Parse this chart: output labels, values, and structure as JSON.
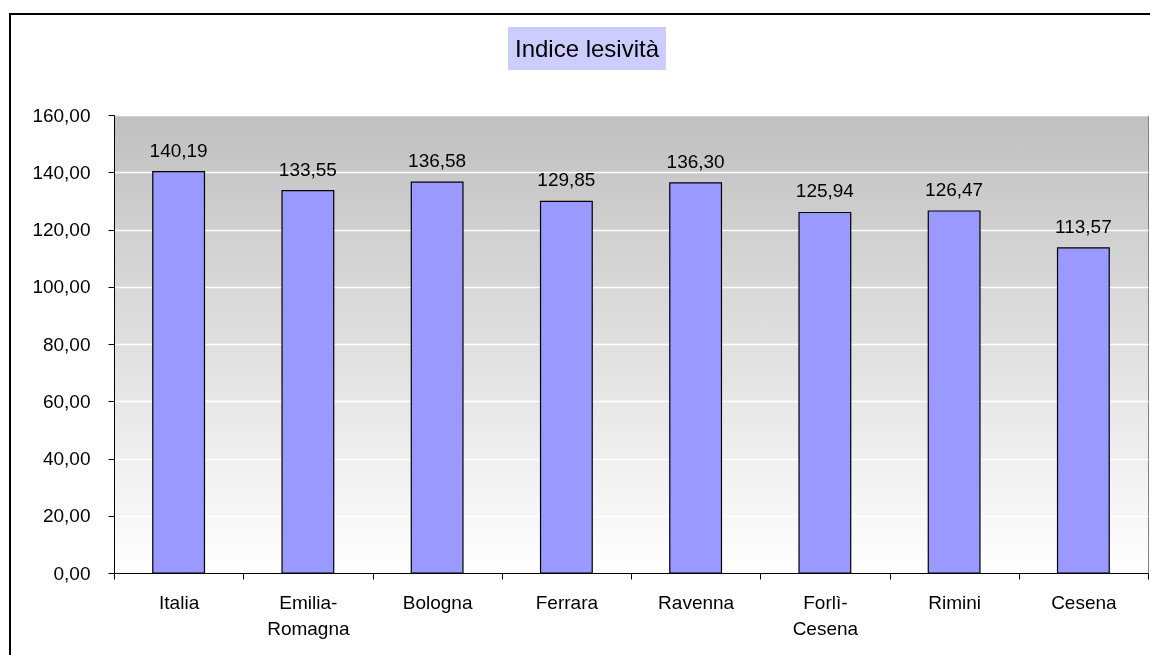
{
  "chart_data": {
    "type": "bar",
    "title": "Indice lesività",
    "categories": [
      "Italia",
      "Emilia-Romagna",
      "Bologna",
      "Ferrara",
      "Ravenna",
      "Forlì-Cesena",
      "Rimini",
      "Cesena"
    ],
    "values": [
      140.19,
      133.55,
      136.58,
      129.85,
      136.3,
      125.94,
      126.47,
      113.57
    ],
    "value_labels": [
      "140,19",
      "133,55",
      "136,58",
      "129,85",
      "136,30",
      "125,94",
      "126,47",
      "113,57"
    ],
    "color": "#9999ff",
    "ylim": [
      0,
      160
    ],
    "yticks": [
      {
        "value": 0,
        "label": "0,00"
      },
      {
        "value": 20,
        "label": "20,00"
      },
      {
        "value": 40,
        "label": "40,00"
      },
      {
        "value": 60,
        "label": "60,00"
      },
      {
        "value": 80,
        "label": "80,00"
      },
      {
        "value": 100,
        "label": "100,00"
      },
      {
        "value": 120,
        "label": "120,00"
      },
      {
        "value": 140,
        "label": "140,00"
      },
      {
        "value": 160,
        "label": "160,00"
      }
    ],
    "grid": "y"
  }
}
